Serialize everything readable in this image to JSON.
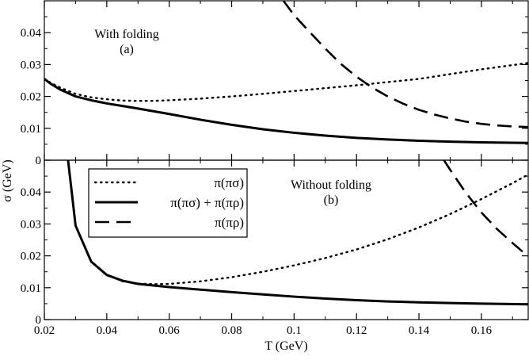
{
  "chart_data": [
    {
      "type": "line",
      "panel": "top",
      "annotation": [
        "With folding",
        "(a)"
      ],
      "xlim": [
        0.02,
        0.175
      ],
      "ylim": [
        0,
        0.05
      ],
      "yticks": [
        "0",
        "0.01",
        "0.02",
        "0.03",
        "0.04"
      ],
      "series": [
        {
          "name": "π(πσ)",
          "style": "dotted",
          "x": [
            0.02,
            0.022,
            0.025,
            0.03,
            0.035,
            0.04,
            0.045,
            0.05,
            0.055,
            0.06,
            0.07,
            0.08,
            0.09,
            0.1,
            0.11,
            0.12,
            0.13,
            0.14,
            0.15,
            0.16,
            0.175
          ],
          "y": [
            0.0255,
            0.0243,
            0.0228,
            0.0208,
            0.0197,
            0.0191,
            0.0187,
            0.0186,
            0.0186,
            0.0188,
            0.0193,
            0.02,
            0.0208,
            0.0217,
            0.0226,
            0.0235,
            0.0245,
            0.0255,
            0.027,
            0.0285,
            0.0305
          ]
        },
        {
          "name": "π(πσ) + π(πρ)",
          "style": "solid",
          "x": [
            0.02,
            0.022,
            0.025,
            0.03,
            0.035,
            0.04,
            0.045,
            0.05,
            0.06,
            0.07,
            0.08,
            0.09,
            0.1,
            0.11,
            0.12,
            0.13,
            0.14,
            0.15,
            0.16,
            0.175
          ],
          "y": [
            0.0255,
            0.024,
            0.0222,
            0.02,
            0.0188,
            0.0178,
            0.017,
            0.0162,
            0.0145,
            0.0127,
            0.0111,
            0.0097,
            0.0086,
            0.0077,
            0.007,
            0.0065,
            0.0061,
            0.0058,
            0.0056,
            0.0054
          ]
        },
        {
          "name": "π(πρ)",
          "style": "dashed",
          "x": [
            0.0966,
            0.1,
            0.105,
            0.11,
            0.115,
            0.12,
            0.125,
            0.13,
            0.135,
            0.14,
            0.145,
            0.15,
            0.155,
            0.16,
            0.165,
            0.17,
            0.175
          ],
          "y": [
            0.05,
            0.0455,
            0.0402,
            0.035,
            0.0302,
            0.0262,
            0.0228,
            0.02,
            0.0177,
            0.0158,
            0.0143,
            0.0131,
            0.0121,
            0.0114,
            0.0109,
            0.0106,
            0.0104
          ]
        }
      ]
    },
    {
      "type": "line",
      "panel": "bottom",
      "annotation": [
        "Without folding",
        "(b)"
      ],
      "xlabel": "T (GeV)",
      "xlim": [
        0.02,
        0.175
      ],
      "ylim": [
        0,
        0.05
      ],
      "xticks": [
        "0.02",
        "0.04",
        "0.06",
        "0.08",
        "0.1",
        "0.12",
        "0.14",
        "0.16"
      ],
      "yticks": [
        "0",
        "0.01",
        "0.02",
        "0.03",
        "0.04"
      ],
      "legend": {
        "placement": "top-left",
        "entries": [
          "π(πσ)",
          "π(πσ) + π(πρ)",
          "π(πρ)"
        ]
      },
      "series": [
        {
          "name": "π(πσ)",
          "style": "dotted",
          "x": [
            0.045,
            0.05,
            0.055,
            0.06,
            0.07,
            0.08,
            0.09,
            0.1,
            0.11,
            0.12,
            0.13,
            0.14,
            0.15,
            0.16,
            0.17,
            0.175
          ],
          "y": [
            0.012,
            0.0113,
            0.0111,
            0.0112,
            0.012,
            0.0133,
            0.015,
            0.017,
            0.0193,
            0.022,
            0.0252,
            0.0289,
            0.0331,
            0.0378,
            0.0428,
            0.0455
          ]
        },
        {
          "name": "π(πσ) + π(πρ)",
          "style": "solid",
          "x": [
            0.0276,
            0.03,
            0.035,
            0.04,
            0.045,
            0.05,
            0.06,
            0.07,
            0.08,
            0.09,
            0.1,
            0.11,
            0.12,
            0.13,
            0.14,
            0.15,
            0.16,
            0.175
          ],
          "y": [
            0.05,
            0.0295,
            0.0182,
            0.014,
            0.0122,
            0.0112,
            0.0102,
            0.0094,
            0.0086,
            0.0079,
            0.0072,
            0.0066,
            0.0061,
            0.0057,
            0.0054,
            0.0052,
            0.005,
            0.0048
          ]
        },
        {
          "name": "π(πρ)",
          "style": "dashed",
          "x": [
            0.148,
            0.15,
            0.155,
            0.16,
            0.165,
            0.17,
            0.175
          ],
          "y": [
            0.05,
            0.047,
            0.0398,
            0.0336,
            0.0284,
            0.024,
            0.0198
          ]
        }
      ]
    }
  ],
  "ylabel": "σ (GeV)"
}
